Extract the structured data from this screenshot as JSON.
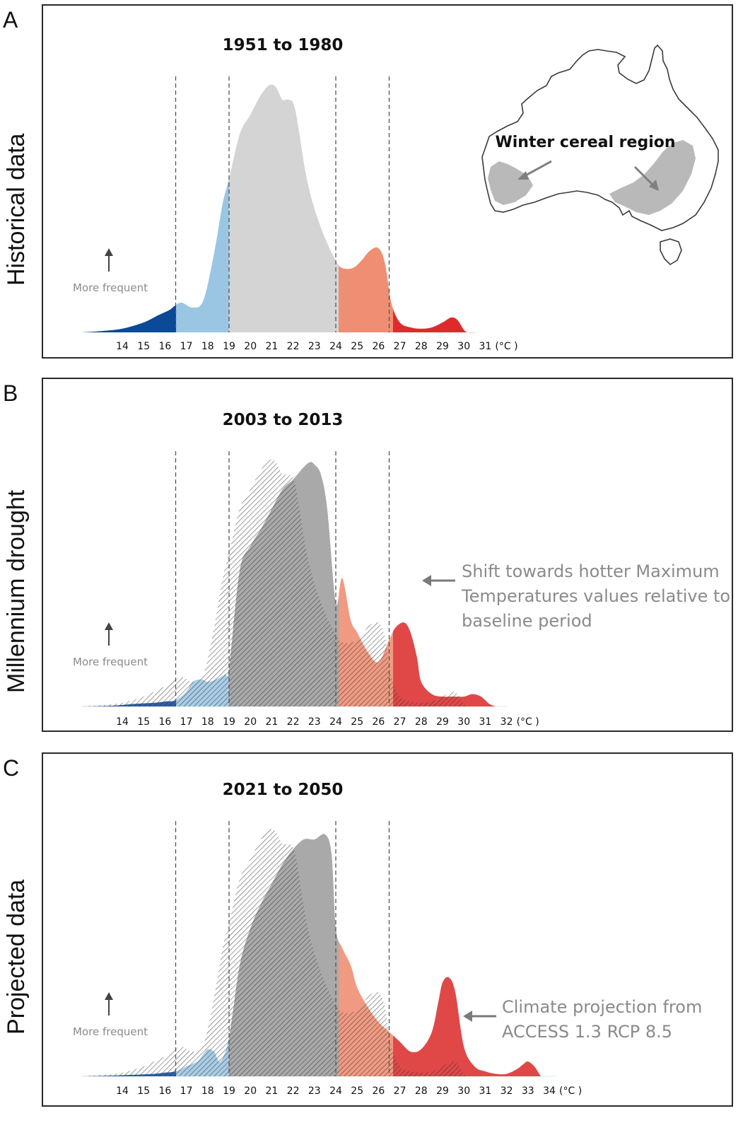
{
  "panels": {
    "A": {
      "letter": "A",
      "side_label": "Historical data"
    },
    "B": {
      "letter": "B",
      "side_label": "Millennium drought"
    },
    "C": {
      "letter": "C",
      "side_label": "Projected data"
    }
  },
  "common": {
    "more_frequent_label": "More frequent",
    "unit_label": "(°C )"
  },
  "map": {
    "label": "Winter cereal region"
  },
  "annotations": {
    "B": [
      "Shift towards hotter Maximum",
      "Temperatures values relative to",
      "baseline period"
    ],
    "C": [
      "Climate projection from",
      "ACCESS 1.3 RCP 8.5"
    ]
  },
  "colors": {
    "cold_extreme": "#0a4a97",
    "cool": "#9ac6e3",
    "optimal": "#d4d4d4",
    "optimal_overlay": "#a9a9a9",
    "warm": "#ef8e72",
    "hot_extreme": "#df2a2c",
    "hot_overlay": "#e04848",
    "warm_overlay": "#f09a82",
    "cool_overlay": "#a9cde6",
    "cold_overlay": "#2f5fa6"
  },
  "chart_data": [
    {
      "type": "area",
      "panel": "A",
      "title": "1951 to 1980",
      "xlabel": "(°C )",
      "ylabel": "More frequent",
      "ticks": [
        14,
        15,
        16,
        17,
        18,
        19,
        20,
        21,
        22,
        23,
        24,
        25,
        26,
        27,
        28,
        29,
        30,
        31
      ],
      "thresholds": [
        16.5,
        19,
        24,
        26.5
      ],
      "xlim": [
        12.1,
        31.0
      ],
      "ylim": [
        0,
        1
      ],
      "series": [
        {
          "name": "1951 to 1980",
          "role": "solid",
          "x": [
            12.1,
            13.0,
            14.0,
            15.0,
            15.7,
            16.2,
            16.5,
            16.8,
            17.3,
            17.8,
            18.3,
            18.7,
            19.0,
            19.5,
            20.0,
            20.5,
            20.9,
            21.2,
            21.5,
            21.8,
            22.1,
            22.6,
            23.0,
            23.5,
            24.0,
            24.3,
            24.8,
            25.2,
            25.6,
            26.0,
            26.3,
            26.6,
            27.0,
            27.5,
            28.0,
            28.5,
            29.0,
            29.4,
            29.7,
            30.0,
            30.2,
            30.6
          ],
          "y": [
            0.0,
            0.005,
            0.015,
            0.04,
            0.07,
            0.09,
            0.11,
            0.12,
            0.1,
            0.13,
            0.32,
            0.52,
            0.62,
            0.8,
            0.88,
            0.96,
            1.0,
            0.99,
            0.94,
            0.94,
            0.9,
            0.64,
            0.5,
            0.38,
            0.29,
            0.26,
            0.26,
            0.29,
            0.33,
            0.34,
            0.28,
            0.12,
            0.04,
            0.02,
            0.015,
            0.02,
            0.04,
            0.06,
            0.05,
            0.01,
            0.0,
            0.0
          ]
        }
      ]
    },
    {
      "type": "area",
      "panel": "B",
      "title": "2003 to 2013",
      "xlabel": "(°C )",
      "ylabel": "More frequent",
      "ticks": [
        14,
        15,
        16,
        17,
        18,
        19,
        20,
        21,
        22,
        23,
        24,
        25,
        26,
        27,
        28,
        29,
        30,
        31,
        32
      ],
      "thresholds": [
        16.5,
        19,
        24,
        26.5
      ],
      "xlim": [
        12.1,
        32.0
      ],
      "ylim": [
        0,
        1
      ],
      "series": [
        {
          "name": "2003 to 2013",
          "role": "solid",
          "x": [
            12.1,
            13.5,
            14.5,
            15.5,
            16.0,
            16.5,
            17.0,
            17.3,
            17.7,
            18.0,
            18.4,
            18.8,
            19.0,
            19.5,
            20.0,
            20.5,
            21.0,
            21.5,
            22.0,
            22.5,
            22.8,
            23.0,
            23.3,
            23.6,
            24.0,
            24.3,
            24.7,
            25.0,
            25.5,
            26.0,
            26.5,
            26.8,
            27.2,
            27.5,
            27.8,
            28.0,
            28.5,
            29.0,
            29.5,
            30.0,
            30.4,
            30.8,
            31.2,
            31.5
          ],
          "y": [
            0.0,
            0.003,
            0.01,
            0.015,
            0.02,
            0.025,
            0.06,
            0.1,
            0.11,
            0.1,
            0.11,
            0.13,
            0.16,
            0.55,
            0.65,
            0.72,
            0.8,
            0.88,
            0.92,
            0.97,
            0.99,
            0.98,
            0.94,
            0.8,
            0.42,
            0.52,
            0.35,
            0.3,
            0.22,
            0.18,
            0.27,
            0.32,
            0.34,
            0.3,
            0.2,
            0.1,
            0.05,
            0.04,
            0.04,
            0.04,
            0.05,
            0.04,
            0.01,
            0.0
          ]
        },
        {
          "name": "1951 to 1980 (baseline)",
          "role": "hatched",
          "x": [
            12.1,
            13.0,
            14.0,
            15.0,
            15.7,
            16.2,
            16.5,
            16.8,
            17.3,
            17.8,
            18.3,
            18.7,
            19.0,
            19.5,
            20.0,
            20.5,
            20.9,
            21.2,
            21.5,
            21.8,
            22.1,
            22.6,
            23.0,
            23.5,
            24.0,
            24.3,
            24.8,
            25.2,
            25.6,
            26.0,
            26.3,
            26.6,
            27.0,
            27.5,
            28.0,
            28.5,
            29.0,
            29.4,
            29.7,
            30.0,
            30.2,
            30.6
          ],
          "y": [
            0.0,
            0.005,
            0.015,
            0.04,
            0.07,
            0.09,
            0.11,
            0.12,
            0.1,
            0.13,
            0.32,
            0.52,
            0.62,
            0.8,
            0.88,
            0.96,
            1.0,
            0.99,
            0.94,
            0.94,
            0.9,
            0.64,
            0.5,
            0.38,
            0.29,
            0.26,
            0.26,
            0.29,
            0.33,
            0.34,
            0.28,
            0.12,
            0.04,
            0.02,
            0.015,
            0.02,
            0.04,
            0.06,
            0.05,
            0.01,
            0.0,
            0.0
          ]
        }
      ]
    },
    {
      "type": "area",
      "panel": "C",
      "title": "2021 to 2050",
      "xlabel": "(°C )",
      "ylabel": "More frequent",
      "ticks": [
        14,
        15,
        16,
        17,
        18,
        19,
        20,
        21,
        22,
        23,
        24,
        25,
        26,
        27,
        28,
        29,
        30,
        31,
        32,
        33,
        34
      ],
      "thresholds": [
        16.5,
        19,
        24,
        26.5
      ],
      "xlim": [
        12.1,
        34.3
      ],
      "ylim": [
        0,
        1
      ],
      "series": [
        {
          "name": "2021 to 2050",
          "role": "solid",
          "x": [
            12.1,
            13.5,
            14.5,
            15.5,
            16.0,
            16.5,
            17.0,
            17.5,
            17.8,
            18.0,
            18.3,
            18.6,
            19.0,
            19.5,
            20.0,
            20.5,
            21.0,
            21.5,
            22.0,
            22.5,
            23.0,
            23.5,
            23.8,
            24.0,
            24.3,
            24.7,
            25.0,
            25.5,
            26.0,
            26.5,
            27.0,
            27.5,
            28.0,
            28.5,
            28.8,
            29.0,
            29.3,
            29.6,
            30.0,
            30.5,
            31.0,
            31.5,
            32.0,
            32.5,
            32.8,
            33.0,
            33.3,
            33.6
          ],
          "y": [
            0.0,
            0.003,
            0.006,
            0.01,
            0.015,
            0.02,
            0.04,
            0.06,
            0.09,
            0.11,
            0.1,
            0.06,
            0.16,
            0.45,
            0.6,
            0.7,
            0.78,
            0.86,
            0.92,
            0.96,
            0.96,
            0.98,
            0.9,
            0.6,
            0.52,
            0.45,
            0.36,
            0.28,
            0.22,
            0.18,
            0.14,
            0.1,
            0.11,
            0.18,
            0.3,
            0.38,
            0.4,
            0.34,
            0.12,
            0.04,
            0.02,
            0.01,
            0.01,
            0.03,
            0.05,
            0.06,
            0.04,
            0.0
          ]
        },
        {
          "name": "1951 to 1980 (baseline)",
          "role": "hatched",
          "x": [
            12.1,
            13.0,
            14.0,
            15.0,
            15.7,
            16.2,
            16.5,
            16.8,
            17.3,
            17.8,
            18.3,
            18.7,
            19.0,
            19.5,
            20.0,
            20.5,
            20.9,
            21.2,
            21.5,
            21.8,
            22.1,
            22.6,
            23.0,
            23.5,
            24.0,
            24.3,
            24.8,
            25.2,
            25.6,
            26.0,
            26.3,
            26.6,
            27.0,
            27.5,
            28.0,
            28.5,
            29.0,
            29.4,
            29.7,
            30.0,
            30.2,
            30.6
          ],
          "y": [
            0.0,
            0.005,
            0.015,
            0.04,
            0.07,
            0.09,
            0.11,
            0.12,
            0.1,
            0.13,
            0.32,
            0.52,
            0.62,
            0.8,
            0.88,
            0.96,
            1.0,
            0.99,
            0.94,
            0.94,
            0.9,
            0.64,
            0.5,
            0.38,
            0.29,
            0.26,
            0.26,
            0.29,
            0.33,
            0.34,
            0.28,
            0.12,
            0.04,
            0.02,
            0.015,
            0.02,
            0.04,
            0.06,
            0.05,
            0.01,
            0.0,
            0.0
          ]
        }
      ]
    }
  ]
}
